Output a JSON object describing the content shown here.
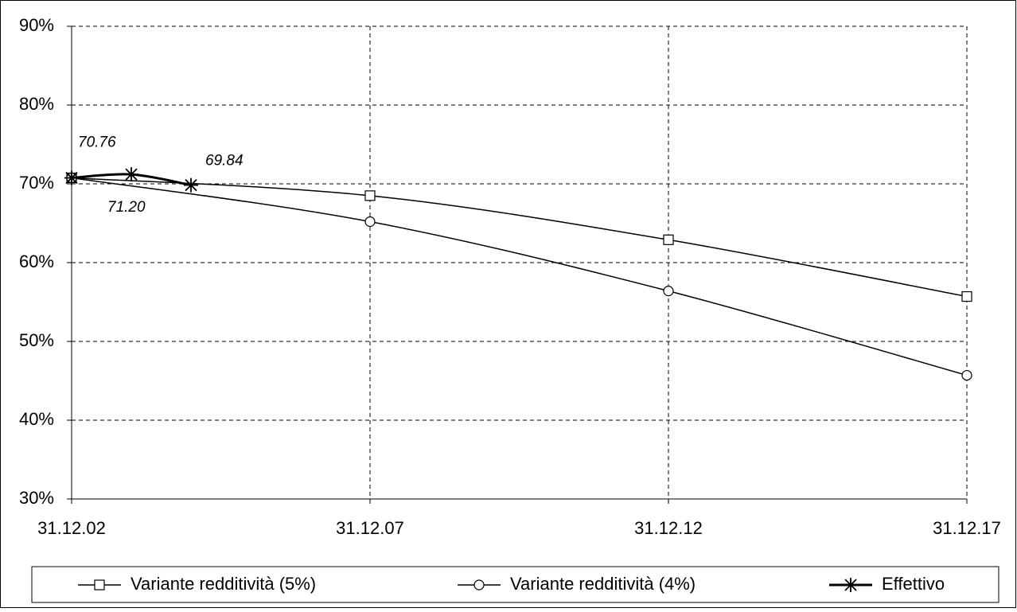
{
  "chart_data": {
    "type": "line",
    "xlim": [
      2002,
      2017
    ],
    "xticks": [
      {
        "value": 2002,
        "label": "31.12.02"
      },
      {
        "value": 2007,
        "label": "31.12.07"
      },
      {
        "value": 2012,
        "label": "31.12.12"
      },
      {
        "value": 2017,
        "label": "31.12.17"
      }
    ],
    "ylim": [
      30,
      90
    ],
    "yticks": [
      {
        "value": 30,
        "label": "30%"
      },
      {
        "value": 40,
        "label": "40%"
      },
      {
        "value": 50,
        "label": "50%"
      },
      {
        "value": 60,
        "label": "60%"
      },
      {
        "value": 70,
        "label": "70%"
      },
      {
        "value": 80,
        "label": "80%"
      },
      {
        "value": 90,
        "label": "90%"
      }
    ],
    "grid": true,
    "legend": "bottom",
    "series": [
      {
        "name": "Variante redditività (5%)",
        "color": "#000000",
        "marker": "square",
        "x": [
          2002,
          2007,
          2012,
          2017
        ],
        "values": [
          70.76,
          68.5,
          62.9,
          55.7
        ]
      },
      {
        "name": "Variante redditività (4%)",
        "color": "#000000",
        "marker": "circle",
        "x": [
          2002,
          2007,
          2012,
          2017
        ],
        "values": [
          70.76,
          65.2,
          56.4,
          45.7
        ]
      },
      {
        "name": "Effettivo",
        "color": "#000000",
        "marker": "star",
        "x": [
          2002,
          2003,
          2004
        ],
        "values": [
          70.76,
          71.2,
          69.84
        ],
        "value_labels": [
          "70.76",
          "71.20",
          "69.84"
        ]
      }
    ]
  }
}
